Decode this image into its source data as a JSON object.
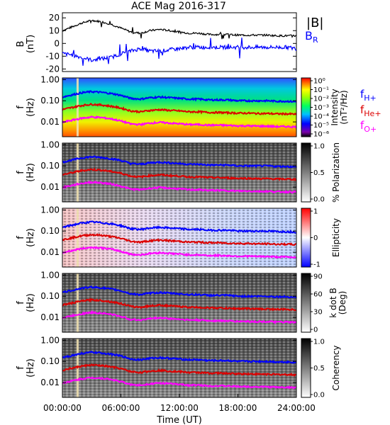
{
  "title": "ACE Mag 2016-317",
  "time_axis": {
    "label": "Time (UT)",
    "ticks": [
      "00:00:00",
      "06:00:00",
      "12:00:00",
      "18:00:00",
      "24:00:00"
    ],
    "range_hours": [
      0,
      24
    ]
  },
  "legend_top": {
    "b_mag": "|B|",
    "b_r": "B",
    "b_r_sub": "R",
    "b_mag_color": "#000000",
    "b_r_color": "#0000ff"
  },
  "legend_freq": [
    {
      "main": "f",
      "sub": "H+",
      "color": "#0000ff"
    },
    {
      "main": "f",
      "sub": "He+",
      "color": "#dd0000"
    },
    {
      "main": "f",
      "sub": "O+",
      "color": "#ff00ff"
    }
  ],
  "panel_labels": {
    "b_ylabel": "B",
    "b_yunit": "(nT)",
    "f_ylabel": "f",
    "f_yunit": "(Hz)"
  },
  "b_ticks": [
    "20",
    "10",
    "0",
    "-10",
    "-20"
  ],
  "f_ticks": [
    "1.00",
    "0.10",
    "0.01"
  ],
  "colorbars": [
    {
      "label_1": "Intensity",
      "label_2": "(nT²/Hz)",
      "ticks": [
        "10⁰",
        "10⁻¹",
        "10⁻²",
        "10⁻³",
        "10⁻⁴",
        "10⁻⁵",
        "10⁻⁶"
      ],
      "scheme": "rainbow"
    },
    {
      "label_1": "% Polarization",
      "label_2": "",
      "ticks": [
        "1.0",
        "0.5",
        "0.0"
      ],
      "scheme": "gray"
    },
    {
      "label_1": "Ellipticity",
      "label_2": "",
      "ticks": [
        "1",
        "0",
        "-1"
      ],
      "scheme": "bwr"
    },
    {
      "label_1": "k dot B",
      "label_2": "(Deg)",
      "ticks": [
        "90",
        "60",
        "30",
        "0"
      ],
      "scheme": "gray"
    },
    {
      "label_1": "Coherency",
      "label_2": "",
      "ticks": [
        "1.0",
        "0.5",
        "0.0"
      ],
      "scheme": "gray"
    }
  ],
  "chart_data": {
    "type": "line",
    "description_of_series_units": "B in nT; frequencies in Hz; x in hours UT",
    "b_ylim": [
      -22,
      24
    ],
    "f_ylim_log10": [
      -2.7,
      0.08
    ],
    "x_hours": [
      0,
      1,
      2,
      3,
      4,
      5,
      6,
      7,
      8,
      9,
      10,
      11,
      12,
      13,
      14,
      15,
      16,
      17,
      18,
      19,
      20,
      21,
      22,
      23,
      24
    ],
    "series": [
      {
        "name": "|B|",
        "values": [
          10,
          13,
          16,
          18,
          17,
          15,
          12,
          9,
          8,
          10,
          11,
          10,
          9,
          8,
          8,
          7,
          7,
          7,
          6.5,
          6.5,
          6.5,
          6.5,
          6,
          6,
          6
        ]
      },
      {
        "name": "B_R",
        "values": [
          -8,
          -9,
          -11,
          -13,
          -12,
          -11,
          -8,
          -6,
          -4,
          -6,
          -6,
          -5,
          -4,
          -3,
          -3,
          -3,
          -3,
          -3,
          -3,
          -3,
          -3,
          -3,
          -3,
          -3,
          -4
        ]
      },
      {
        "name": "f_H+",
        "values": [
          0.15,
          0.19,
          0.24,
          0.27,
          0.25,
          0.22,
          0.18,
          0.13,
          0.12,
          0.14,
          0.15,
          0.14,
          0.13,
          0.12,
          0.12,
          0.11,
          0.11,
          0.11,
          0.1,
          0.1,
          0.1,
          0.1,
          0.095,
          0.095,
          0.09
        ]
      },
      {
        "name": "f_He+",
        "values": [
          0.038,
          0.048,
          0.06,
          0.068,
          0.063,
          0.055,
          0.045,
          0.033,
          0.03,
          0.035,
          0.038,
          0.035,
          0.033,
          0.03,
          0.03,
          0.028,
          0.028,
          0.027,
          0.026,
          0.026,
          0.025,
          0.025,
          0.024,
          0.024,
          0.023
        ]
      },
      {
        "name": "f_O+",
        "values": [
          0.0095,
          0.012,
          0.015,
          0.017,
          0.016,
          0.014,
          0.011,
          0.008,
          0.0075,
          0.0088,
          0.0095,
          0.0088,
          0.0082,
          0.0075,
          0.0075,
          0.007,
          0.007,
          0.0068,
          0.0065,
          0.0065,
          0.0063,
          0.0063,
          0.006,
          0.006,
          0.0058
        ]
      }
    ]
  }
}
